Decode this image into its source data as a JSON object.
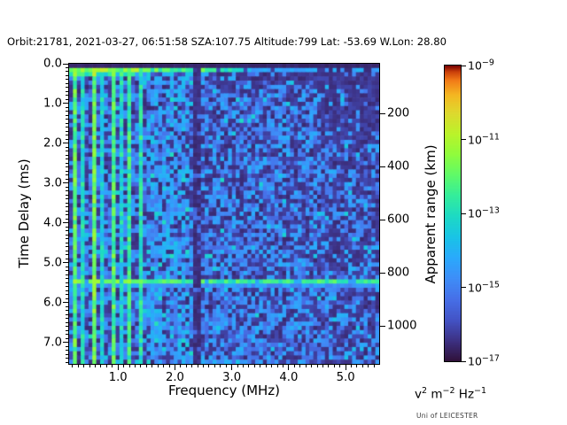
{
  "header": {
    "title": "Orbit:21781, 2021-03-27, 06:51:58 SZA:107.75 Altitude:799 Lat: -53.69 W.Lon: 28.80"
  },
  "credit": "Uni of LEICESTER",
  "chart_data": {
    "type": "heatmap",
    "subtype": "radar-sounder-ionogram-spectrogram",
    "title": "Orbit:21781, 2021-03-27, 06:51:58 SZA:107.75 Altitude:799 Lat: -53.69 W.Lon: 28.80",
    "xlabel": "Frequency (MHz)",
    "ylabel": "Time Delay (ms)",
    "y2label": "Apparent range (km)",
    "x_range": [
      0.14,
      5.59
    ],
    "y_range": [
      0.0,
      7.54
    ],
    "x_major_ticks": [
      1.0,
      2.0,
      3.0,
      4.0,
      5.0
    ],
    "x_tick_labels": [
      "1.0",
      "2.0",
      "3.0",
      "4.0",
      "5.0"
    ],
    "x_minor_step": 0.1,
    "y_major_ticks": [
      0,
      1,
      2,
      3,
      4,
      5,
      6,
      7
    ],
    "y_tick_labels": [
      "0.0",
      "1.0",
      "2.0",
      "3.0",
      "4.0",
      "5.0",
      "6.0",
      "7.0"
    ],
    "y_minor_step": 0.1,
    "y2_ticks": [
      200,
      400,
      600,
      800,
      1000
    ],
    "y2_tick_labels": [
      "200",
      "400",
      "600",
      "800",
      "1000"
    ],
    "km_per_ms": 150,
    "grid": {
      "cols": 80,
      "rows": 71
    },
    "colormap": {
      "name": "turbo",
      "low_color": "#30123b",
      "high_color": "#7a0403"
    },
    "colorbar": {
      "scale": "log",
      "tick_labels": [
        "10^-9",
        "10^-11",
        "10^-13",
        "10^-15",
        "10^-17"
      ],
      "units": "v^2 m^-2 Hz^-1",
      "units_parts": [
        {
          "base": "v",
          "exp": "2"
        },
        {
          "base": "m",
          "exp": "-2"
        },
        {
          "base": "Hz",
          "exp": "-1"
        }
      ]
    },
    "features": {
      "zero_delay_dark_row_ms": 0.05,
      "echo_band_delays_ms": [
        0.16,
        5.45
      ],
      "plasma_harmonic_lines_mhz": {
        "first": 0.24,
        "spacing": 0.163,
        "cutoff": 1.5
      },
      "absorption_band_mhz": 2.4,
      "dark_patch": {
        "f_min_mhz": 4.55,
        "delay_max_ms": 1.9
      },
      "noise_floor_range": [
        "10^-17",
        "10^-15"
      ],
      "seed": 42
    }
  }
}
